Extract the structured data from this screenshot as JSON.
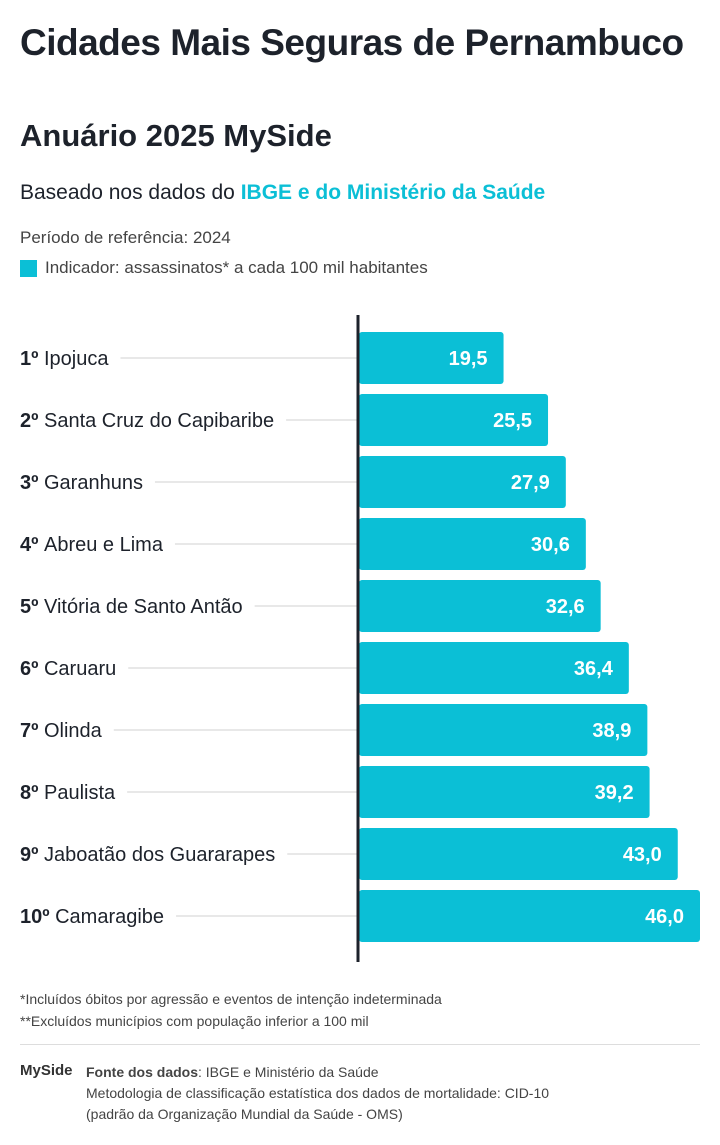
{
  "header": {
    "title": "Cidades Mais Seguras de Pernambuco",
    "subtitle": "Anuário 2025 MySide",
    "based_prefix": "Baseado nos dados do ",
    "based_highlight": "IBGE e do Ministério da Saúde",
    "period": "Período de referência: 2024",
    "indicator": "Indicador: assassinatos* a cada 100 mil habitantes"
  },
  "colors": {
    "bar": "#0bbfd6",
    "axis": "#1d222b",
    "text": "#1d222b"
  },
  "chart_data": {
    "type": "bar",
    "orientation": "horizontal",
    "xlim": [
      0,
      46
    ],
    "ranks": [
      "1º",
      "2º",
      "3º",
      "4º",
      "5º",
      "6º",
      "7º",
      "8º",
      "9º",
      "10º"
    ],
    "categories": [
      "Ipojuca",
      "Santa Cruz do Capibaribe",
      "Garanhuns",
      "Abreu e Lima",
      "Vitória de Santo Antão",
      "Caruaru",
      "Olinda",
      "Paulista",
      "Jaboatão dos Guararapes",
      "Camaragibe"
    ],
    "values": [
      19.5,
      25.5,
      27.9,
      30.6,
      32.6,
      36.4,
      38.9,
      39.2,
      43.0,
      46.0
    ],
    "labels": [
      "19,5",
      "25,5",
      "27,9",
      "30,6",
      "32,6",
      "36,4",
      "38,9",
      "39,2",
      "43,0",
      "46,0"
    ]
  },
  "notes": [
    "*Incluídos óbitos por agressão e eventos de intenção indeterminada",
    "**Excluídos municípios com população inferior a 100 mil"
  ],
  "footer": {
    "logo": "MySide",
    "source_label": "Fonte dos dados",
    "source_value": ": IBGE e Ministério da Saúde",
    "method1": "Metodologia de classificação estatística dos dados de mortalidade: CID-10",
    "method2": "(padrão da Organização Mundial da Saúde - OMS)"
  }
}
